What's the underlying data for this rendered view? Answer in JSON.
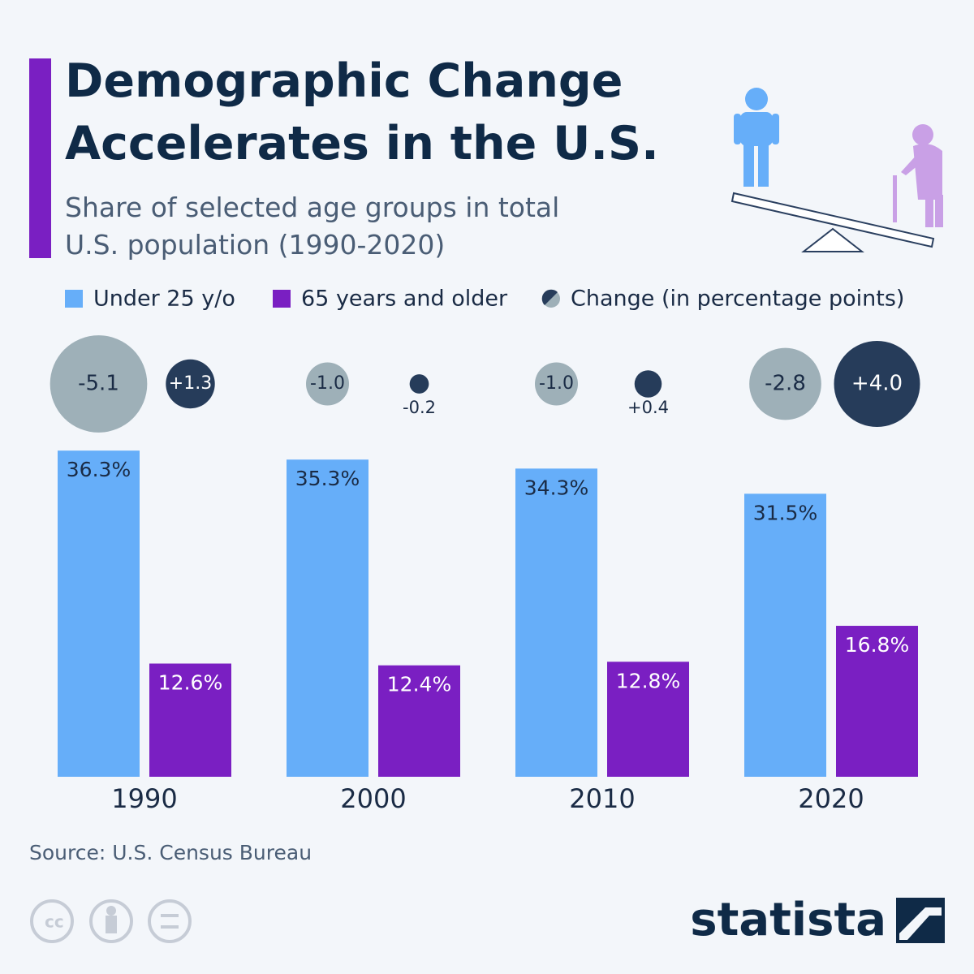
{
  "chart_data": {
    "type": "bar",
    "title": "Demographic Change Accelerates in the U.S.",
    "subtitle": "Share of selected age groups in total U.S. population (1990-2020)",
    "categories": [
      "1990",
      "2000",
      "2010",
      "2020"
    ],
    "series": [
      {
        "name": "Under 25 y/o",
        "color": "#66aef9",
        "values": [
          36.3,
          35.3,
          34.3,
          31.5
        ],
        "value_labels": [
          "36.3%",
          "35.3%",
          "34.3%",
          "31.5%"
        ]
      },
      {
        "name": "65 years and older",
        "color": "#7a1fc2",
        "values": [
          12.6,
          12.4,
          12.8,
          16.8
        ],
        "value_labels": [
          "12.6%",
          "12.4%",
          "12.8%",
          "16.8%"
        ]
      }
    ],
    "change": {
      "name": "Change (in percentage points)",
      "series": [
        {
          "color": "#9eb0b8",
          "values": [
            -5.1,
            -1.0,
            -1.0,
            -2.8
          ],
          "value_labels": [
            "-5.1",
            "-1.0",
            "-1.0",
            "-2.8"
          ]
        },
        {
          "color": "#263c5a",
          "values": [
            1.3,
            -0.2,
            0.4,
            4.0
          ],
          "value_labels": [
            "+1.3",
            "-0.2",
            "+0.4",
            "+4.0"
          ]
        }
      ]
    },
    "source": "Source: U.S. Census Bureau",
    "brand": "statista"
  }
}
